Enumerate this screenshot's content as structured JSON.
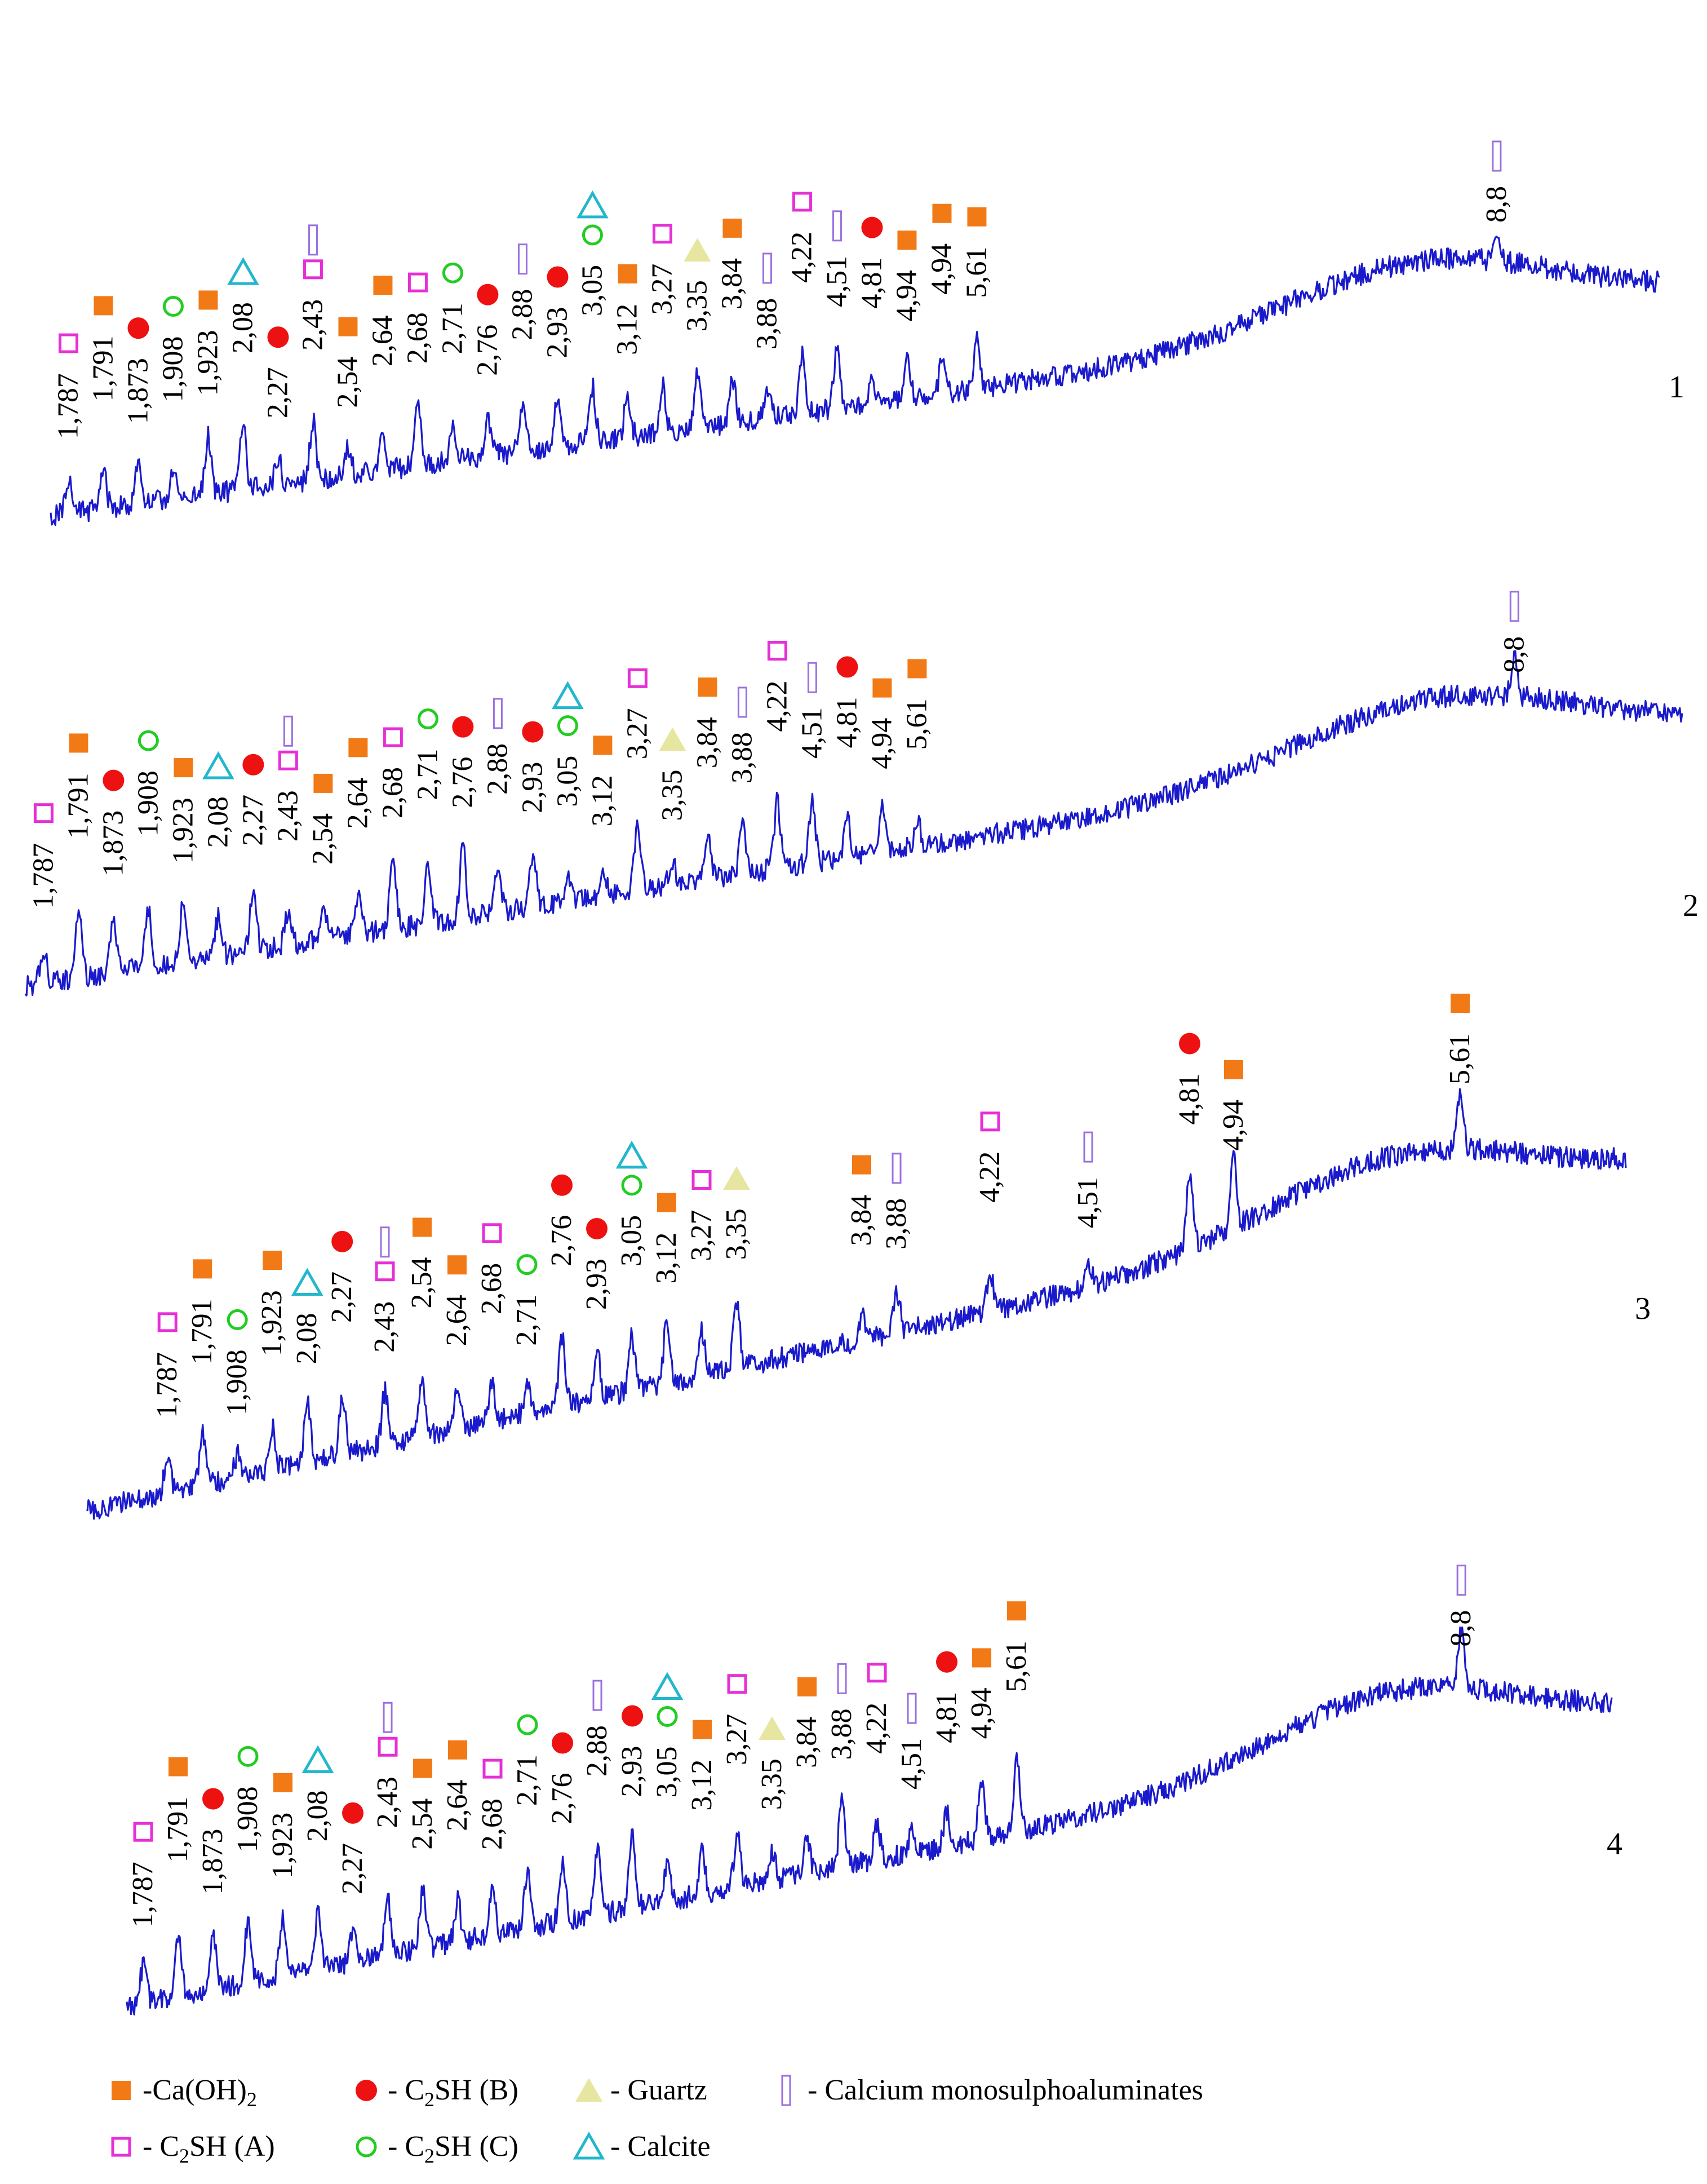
{
  "colors": {
    "trace": "#1a1acc",
    "CaOH2": "#f27a16",
    "C2SH_A": "#e62fd6",
    "C2SH_B": "#ee1111",
    "C2SH_C": "#22cc22",
    "Calcite": "#22b7cc",
    "Quartz": "#e6e6a0",
    "CMSA": "#9a6fe0"
  },
  "legend": [
    {
      "symbol": "CaOH2",
      "text": "-Ca(OH)",
      "sub": "2",
      "after": ""
    },
    {
      "symbol": "C2SH_B",
      "text": "- C",
      "sub": "2",
      "after": "SH (B)"
    },
    {
      "symbol": "Quartz",
      "text": "- Guartz",
      "sub": "",
      "after": ""
    },
    {
      "symbol": "CMSA",
      "text": "- Calcium monosulphoaluminates",
      "sub": "",
      "after": ""
    },
    {
      "symbol": "C2SH_A",
      "text": "- C",
      "sub": "2",
      "after": "SH (A)"
    },
    {
      "symbol": "C2SH_C",
      "text": "- C",
      "sub": "2",
      "after": "SH (C)"
    },
    {
      "symbol": "Calcite",
      "text": "- Calcite",
      "sub": "",
      "after": ""
    }
  ],
  "chart_data": [
    {
      "type": "line",
      "panel": "1",
      "x_domain": [
        1.7,
        9.6
      ],
      "peaks": [
        {
          "d": "1,787",
          "phases": [
            "C2SH_A"
          ]
        },
        {
          "d": "1,791",
          "phases": [
            "CaOH2"
          ]
        },
        {
          "d": "1,873",
          "phases": [
            "C2SH_B"
          ]
        },
        {
          "d": "1,908",
          "phases": [
            "C2SH_C"
          ]
        },
        {
          "d": "1,923",
          "phases": [
            "CaOH2"
          ]
        },
        {
          "d": "2,08",
          "phases": [
            "Calcite"
          ]
        },
        {
          "d": "2,27",
          "phases": [
            "C2SH_B"
          ]
        },
        {
          "d": "2,43",
          "phases": [
            "C2SH_A",
            "CMSA"
          ]
        },
        {
          "d": "2,54",
          "phases": [
            "CaOH2"
          ]
        },
        {
          "d": "2,64",
          "phases": [
            "CaOH2"
          ]
        },
        {
          "d": "2,68",
          "phases": [
            "C2SH_A"
          ]
        },
        {
          "d": "2,71",
          "phases": [
            "C2SH_C"
          ]
        },
        {
          "d": "2,76",
          "phases": [
            "C2SH_B"
          ]
        },
        {
          "d": "2,88",
          "phases": [
            "CMSA"
          ]
        },
        {
          "d": "2,93",
          "phases": [
            "C2SH_B"
          ]
        },
        {
          "d": "3,05",
          "phases": [
            "C2SH_C",
            "Calcite"
          ]
        },
        {
          "d": "3,12",
          "phases": [
            "CaOH2"
          ]
        },
        {
          "d": "3,27",
          "phases": [
            "C2SH_A"
          ]
        },
        {
          "d": "3,35",
          "phases": [
            "Quartz"
          ]
        },
        {
          "d": "3,84",
          "phases": [
            "CaOH2"
          ]
        },
        {
          "d": "3,88",
          "phases": [
            "CMSA"
          ]
        },
        {
          "d": "4,22",
          "phases": [
            "C2SH_A"
          ]
        },
        {
          "d": "4,51",
          "phases": [
            "CMSA"
          ]
        },
        {
          "d": "4,81",
          "phases": [
            "C2SH_B"
          ]
        },
        {
          "d": "4,94",
          "phases": [
            "CaOH2"
          ]
        },
        {
          "d": "4,94",
          "phases": [
            "CaOH2"
          ]
        },
        {
          "d": "5,61",
          "phases": [
            "CaOH2"
          ]
        },
        {
          "d": "8,8",
          "phases": [
            "CMSA"
          ]
        }
      ]
    },
    {
      "type": "line",
      "panel": "2",
      "x_domain": [
        1.7,
        9.6
      ],
      "peaks": [
        {
          "d": "1,787",
          "phases": [
            "C2SH_A"
          ]
        },
        {
          "d": "1,791",
          "phases": [
            "CaOH2"
          ]
        },
        {
          "d": "1,873",
          "phases": [
            "C2SH_B"
          ]
        },
        {
          "d": "1,908",
          "phases": [
            "C2SH_C"
          ]
        },
        {
          "d": "1,923",
          "phases": [
            "CaOH2"
          ]
        },
        {
          "d": "2,08",
          "phases": [
            "Calcite"
          ]
        },
        {
          "d": "2,27",
          "phases": [
            "C2SH_B"
          ]
        },
        {
          "d": "2,43",
          "phases": [
            "C2SH_A",
            "CMSA"
          ]
        },
        {
          "d": "2,54",
          "phases": [
            "CaOH2"
          ]
        },
        {
          "d": "2,64",
          "phases": [
            "CaOH2"
          ]
        },
        {
          "d": "2,68",
          "phases": [
            "C2SH_A"
          ]
        },
        {
          "d": "2,71",
          "phases": [
            "C2SH_C"
          ]
        },
        {
          "d": "2,76",
          "phases": [
            "C2SH_B"
          ]
        },
        {
          "d": "2,88",
          "phases": [
            "CMSA"
          ]
        },
        {
          "d": "2,93",
          "phases": [
            "C2SH_B"
          ]
        },
        {
          "d": "3,05",
          "phases": [
            "C2SH_C",
            "Calcite"
          ]
        },
        {
          "d": "3,12",
          "phases": [
            "CaOH2"
          ]
        },
        {
          "d": "3,27",
          "phases": [
            "C2SH_A"
          ]
        },
        {
          "d": "3,35",
          "phases": [
            "Quartz"
          ]
        },
        {
          "d": "3,84",
          "phases": [
            "CaOH2"
          ]
        },
        {
          "d": "3,88",
          "phases": [
            "CMSA"
          ]
        },
        {
          "d": "4,22",
          "phases": [
            "C2SH_A"
          ]
        },
        {
          "d": "4,51",
          "phases": [
            "CMSA"
          ]
        },
        {
          "d": "4,81",
          "phases": [
            "C2SH_B"
          ]
        },
        {
          "d": "4,94",
          "phases": [
            "CaOH2"
          ]
        },
        {
          "d": "5,61",
          "phases": [
            "CaOH2"
          ]
        },
        {
          "d": "8,8",
          "phases": [
            "CMSA"
          ]
        }
      ]
    },
    {
      "type": "line",
      "panel": "3",
      "x_domain": [
        1.55,
        6.1
      ],
      "peaks": [
        {
          "d": "1,787",
          "phases": [
            "C2SH_A"
          ]
        },
        {
          "d": "1,791",
          "phases": [
            "CaOH2"
          ]
        },
        {
          "d": "1,908",
          "phases": [
            "C2SH_C"
          ]
        },
        {
          "d": "1,923",
          "phases": [
            "CaOH2"
          ]
        },
        {
          "d": "2,08",
          "phases": [
            "Calcite"
          ]
        },
        {
          "d": "2,27",
          "phases": [
            "C2SH_B"
          ]
        },
        {
          "d": "2,43",
          "phases": [
            "C2SH_A",
            "CMSA"
          ]
        },
        {
          "d": "2,54",
          "phases": [
            "CaOH2"
          ]
        },
        {
          "d": "2,64",
          "phases": [
            "CaOH2"
          ]
        },
        {
          "d": "2,68",
          "phases": [
            "C2SH_A"
          ]
        },
        {
          "d": "2,71",
          "phases": [
            "C2SH_C"
          ]
        },
        {
          "d": "2,76",
          "phases": [
            "C2SH_B"
          ]
        },
        {
          "d": "2,93",
          "phases": [
            "C2SH_B"
          ]
        },
        {
          "d": "3,05",
          "phases": [
            "C2SH_C",
            "Calcite"
          ]
        },
        {
          "d": "3,12",
          "phases": [
            "CaOH2"
          ]
        },
        {
          "d": "3,27",
          "phases": [
            "C2SH_A"
          ]
        },
        {
          "d": "3,35",
          "phases": [
            "Quartz"
          ]
        },
        {
          "d": "3,84",
          "phases": [
            "CaOH2"
          ]
        },
        {
          "d": "3,88",
          "phases": [
            "CMSA"
          ]
        },
        {
          "d": "4,22",
          "phases": [
            "C2SH_A"
          ]
        },
        {
          "d": "4,51",
          "phases": [
            "CMSA"
          ]
        },
        {
          "d": "4,81",
          "phases": [
            "C2SH_B"
          ]
        },
        {
          "d": "4,94",
          "phases": [
            "CaOH2"
          ]
        },
        {
          "d": "5,61",
          "phases": [
            "CaOH2"
          ]
        }
      ]
    },
    {
      "type": "line",
      "panel": "4",
      "x_domain": [
        1.7,
        9.6
      ],
      "peaks": [
        {
          "d": "1,787",
          "phases": [
            "C2SH_A"
          ]
        },
        {
          "d": "1,791",
          "phases": [
            "CaOH2"
          ]
        },
        {
          "d": "1,873",
          "phases": [
            "C2SH_B"
          ]
        },
        {
          "d": "1,908",
          "phases": [
            "C2SH_C"
          ]
        },
        {
          "d": "1,923",
          "phases": [
            "CaOH2"
          ]
        },
        {
          "d": "2,08",
          "phases": [
            "Calcite"
          ]
        },
        {
          "d": "2,27",
          "phases": [
            "C2SH_B"
          ]
        },
        {
          "d": "2,43",
          "phases": [
            "C2SH_A",
            "CMSA"
          ]
        },
        {
          "d": "2,54",
          "phases": [
            "CaOH2"
          ]
        },
        {
          "d": "2,64",
          "phases": [
            "CaOH2"
          ]
        },
        {
          "d": "2,68",
          "phases": [
            "C2SH_A"
          ]
        },
        {
          "d": "2,71",
          "phases": [
            "C2SH_C"
          ]
        },
        {
          "d": "2,76",
          "phases": [
            "C2SH_B"
          ]
        },
        {
          "d": "2,88",
          "phases": [
            "CMSA"
          ]
        },
        {
          "d": "2,93",
          "phases": [
            "C2SH_B"
          ]
        },
        {
          "d": "3,05",
          "phases": [
            "C2SH_C",
            "Calcite"
          ]
        },
        {
          "d": "3,12",
          "phases": [
            "CaOH2"
          ]
        },
        {
          "d": "3,27",
          "phases": [
            "C2SH_A"
          ]
        },
        {
          "d": "3,35",
          "phases": [
            "Quartz"
          ]
        },
        {
          "d": "3,84",
          "phases": [
            "CaOH2"
          ]
        },
        {
          "d": "3,88",
          "phases": [
            "CMSA"
          ]
        },
        {
          "d": "4,22",
          "phases": [
            "C2SH_A"
          ]
        },
        {
          "d": "4,51",
          "phases": [
            "CMSA"
          ]
        },
        {
          "d": "4,81",
          "phases": [
            "C2SH_B"
          ]
        },
        {
          "d": "4,94",
          "phases": [
            "CaOH2"
          ]
        },
        {
          "d": "5,61",
          "phases": [
            "CaOH2"
          ]
        },
        {
          "d": "8,8",
          "phases": [
            "CMSA"
          ]
        }
      ]
    }
  ]
}
